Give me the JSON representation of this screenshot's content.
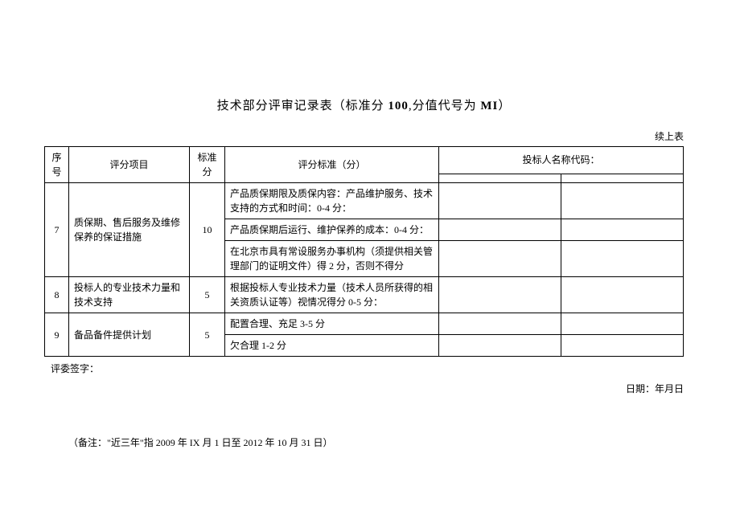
{
  "title_prefix": "技术部分评审记录表（标准分 ",
  "title_score": "100",
  "title_mid": ",分值代号为 ",
  "title_code": "MI",
  "title_suffix": "）",
  "continuation_label": "续上表",
  "headers": {
    "seq": "序号",
    "item": "评分项目",
    "score": "标准分",
    "criteria": "评分标准（分）",
    "bidder": "投标人名称代码："
  },
  "rows": [
    {
      "seq": "7",
      "item": "质保期、售后服务及维修保养的保证措施",
      "score": "10",
      "criteria": [
        "产品质保期限及质保内容：产品维护服务、技术支持的方式和时间：0-4 分：",
        "产品质保期后运行、维护保养的成本：0-4 分：",
        "在北京市具有常设服务办事机构（须提供相关管理部门的证明文件）得 2 分，否则不得分"
      ]
    },
    {
      "seq": "8",
      "item": "投标人的专业技术力量和技术支持",
      "score": "5",
      "criteria": [
        "根据投标人专业技术力量（技术人员所获得的相关资质认证等）视情况得分 0-5 分："
      ]
    },
    {
      "seq": "9",
      "item": "备品备件提供计划",
      "score": "5",
      "criteria": [
        "配置合理、充足 3-5 分",
        "欠合理 1-2 分"
      ]
    }
  ],
  "signature_label": "评委签字：",
  "date_label": "日期：年月日",
  "footnote": "（备注：\"近三年\"指 2009 年 IX 月 1 日至 2012 年 10 月 31 日）"
}
